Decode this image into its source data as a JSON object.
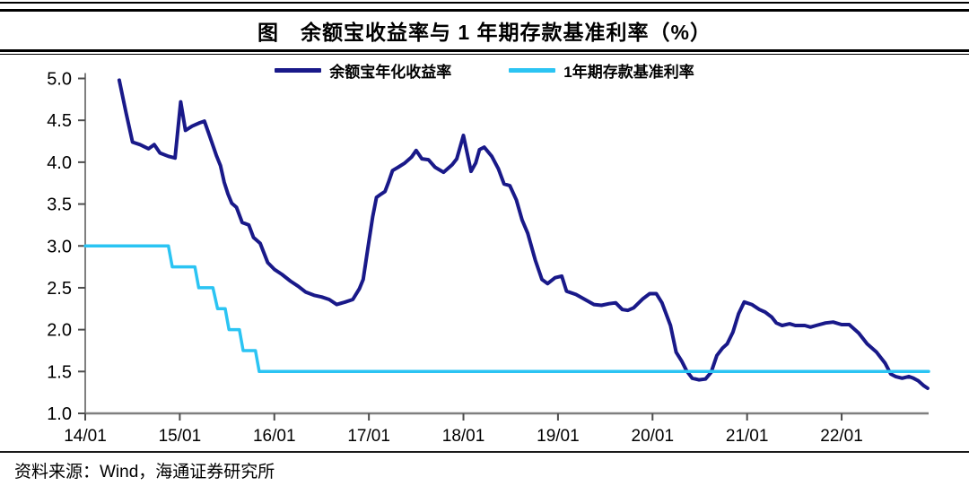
{
  "header": {
    "title": "图　余额宝收益率与 1 年期存款基准利率（%）"
  },
  "legend": {
    "items": [
      {
        "label": "余额宝年化收益率",
        "color": "#191989"
      },
      {
        "label": "1年期存款基准利率",
        "color": "#2bc4f3"
      }
    ]
  },
  "footer": {
    "source": "资料来源：Wind，海通证券研究所"
  },
  "chart_data": {
    "type": "line",
    "title": "余额宝收益率与1年期存款基准利率（%）",
    "xlabel": "",
    "ylabel": "",
    "grid": false,
    "legend_position": "top",
    "ylim": [
      1.0,
      5.0
    ],
    "xlim": [
      2014.0,
      2022.92
    ],
    "y_ticks": [
      5.0,
      4.5,
      4.0,
      3.5,
      3.0,
      2.5,
      2.0,
      1.5,
      1.0
    ],
    "x_ticks": [
      "14/01",
      "15/01",
      "16/01",
      "17/01",
      "18/01",
      "19/01",
      "20/01",
      "21/01",
      "22/01"
    ],
    "axis_color": "#7f7f7f",
    "tick_color": "#4d4d4d",
    "series": [
      {
        "name": "余额宝年化收益率",
        "color": "#191989",
        "width": 4,
        "points": [
          [
            2014.36,
            4.98
          ],
          [
            2014.43,
            4.6
          ],
          [
            2014.5,
            4.24
          ],
          [
            2014.58,
            4.21
          ],
          [
            2014.67,
            4.16
          ],
          [
            2014.73,
            4.21
          ],
          [
            2014.79,
            4.11
          ],
          [
            2014.88,
            4.07
          ],
          [
            2014.95,
            4.05
          ],
          [
            2015.01,
            4.72
          ],
          [
            2015.06,
            4.38
          ],
          [
            2015.13,
            4.43
          ],
          [
            2015.21,
            4.47
          ],
          [
            2015.26,
            4.49
          ],
          [
            2015.32,
            4.3
          ],
          [
            2015.39,
            4.07
          ],
          [
            2015.43,
            3.96
          ],
          [
            2015.47,
            3.76
          ],
          [
            2015.51,
            3.62
          ],
          [
            2015.55,
            3.51
          ],
          [
            2015.6,
            3.46
          ],
          [
            2015.66,
            3.28
          ],
          [
            2015.73,
            3.25
          ],
          [
            2015.78,
            3.1
          ],
          [
            2015.85,
            3.03
          ],
          [
            2015.93,
            2.8
          ],
          [
            2016.0,
            2.72
          ],
          [
            2016.08,
            2.66
          ],
          [
            2016.17,
            2.58
          ],
          [
            2016.25,
            2.52
          ],
          [
            2016.33,
            2.45
          ],
          [
            2016.42,
            2.41
          ],
          [
            2016.5,
            2.39
          ],
          [
            2016.58,
            2.36
          ],
          [
            2016.66,
            2.3
          ],
          [
            2016.75,
            2.33
          ],
          [
            2016.83,
            2.36
          ],
          [
            2016.9,
            2.49
          ],
          [
            2016.94,
            2.6
          ],
          [
            2017.0,
            3.05
          ],
          [
            2017.04,
            3.35
          ],
          [
            2017.08,
            3.58
          ],
          [
            2017.13,
            3.62
          ],
          [
            2017.17,
            3.65
          ],
          [
            2017.21,
            3.77
          ],
          [
            2017.25,
            3.9
          ],
          [
            2017.31,
            3.94
          ],
          [
            2017.38,
            3.99
          ],
          [
            2017.45,
            4.06
          ],
          [
            2017.5,
            4.14
          ],
          [
            2017.56,
            4.04
          ],
          [
            2017.63,
            4.03
          ],
          [
            2017.7,
            3.94
          ],
          [
            2017.79,
            3.88
          ],
          [
            2017.88,
            3.97
          ],
          [
            2017.93,
            4.04
          ],
          [
            2018.0,
            4.32
          ],
          [
            2018.08,
            3.89
          ],
          [
            2018.13,
            3.99
          ],
          [
            2018.17,
            4.15
          ],
          [
            2018.22,
            4.18
          ],
          [
            2018.3,
            4.07
          ],
          [
            2018.37,
            3.92
          ],
          [
            2018.43,
            3.74
          ],
          [
            2018.49,
            3.72
          ],
          [
            2018.56,
            3.55
          ],
          [
            2018.62,
            3.31
          ],
          [
            2018.68,
            3.15
          ],
          [
            2018.76,
            2.83
          ],
          [
            2018.83,
            2.6
          ],
          [
            2018.89,
            2.55
          ],
          [
            2018.97,
            2.62
          ],
          [
            2019.04,
            2.64
          ],
          [
            2019.09,
            2.46
          ],
          [
            2019.19,
            2.42
          ],
          [
            2019.27,
            2.37
          ],
          [
            2019.38,
            2.3
          ],
          [
            2019.46,
            2.29
          ],
          [
            2019.54,
            2.31
          ],
          [
            2019.61,
            2.32
          ],
          [
            2019.68,
            2.24
          ],
          [
            2019.74,
            2.23
          ],
          [
            2019.8,
            2.26
          ],
          [
            2019.9,
            2.37
          ],
          [
            2019.97,
            2.43
          ],
          [
            2020.04,
            2.43
          ],
          [
            2020.1,
            2.32
          ],
          [
            2020.19,
            2.05
          ],
          [
            2020.25,
            1.73
          ],
          [
            2020.31,
            1.62
          ],
          [
            2020.36,
            1.51
          ],
          [
            2020.42,
            1.42
          ],
          [
            2020.49,
            1.4
          ],
          [
            2020.56,
            1.41
          ],
          [
            2020.62,
            1.49
          ],
          [
            2020.68,
            1.69
          ],
          [
            2020.74,
            1.78
          ],
          [
            2020.79,
            1.83
          ],
          [
            2020.85,
            1.97
          ],
          [
            2020.91,
            2.19
          ],
          [
            2020.97,
            2.33
          ],
          [
            2021.05,
            2.3
          ],
          [
            2021.13,
            2.24
          ],
          [
            2021.19,
            2.21
          ],
          [
            2021.26,
            2.15
          ],
          [
            2021.31,
            2.08
          ],
          [
            2021.37,
            2.05
          ],
          [
            2021.45,
            2.07
          ],
          [
            2021.51,
            2.05
          ],
          [
            2021.61,
            2.05
          ],
          [
            2021.67,
            2.03
          ],
          [
            2021.73,
            2.05
          ],
          [
            2021.83,
            2.08
          ],
          [
            2021.91,
            2.09
          ],
          [
            2022.0,
            2.06
          ],
          [
            2022.08,
            2.06
          ],
          [
            2022.18,
            1.96
          ],
          [
            2022.27,
            1.83
          ],
          [
            2022.37,
            1.73
          ],
          [
            2022.46,
            1.6
          ],
          [
            2022.52,
            1.47
          ],
          [
            2022.57,
            1.44
          ],
          [
            2022.64,
            1.42
          ],
          [
            2022.71,
            1.44
          ],
          [
            2022.76,
            1.42
          ],
          [
            2022.81,
            1.39
          ],
          [
            2022.87,
            1.33
          ],
          [
            2022.91,
            1.3
          ]
        ]
      },
      {
        "name": "1年期存款基准利率",
        "color": "#2bc4f3",
        "width": 3.5,
        "points": [
          [
            2014.0,
            3.0
          ],
          [
            2014.88,
            3.0
          ],
          [
            2014.92,
            2.75
          ],
          [
            2015.16,
            2.75
          ],
          [
            2015.2,
            2.5
          ],
          [
            2015.35,
            2.5
          ],
          [
            2015.4,
            2.25
          ],
          [
            2015.48,
            2.25
          ],
          [
            2015.52,
            2.0
          ],
          [
            2015.63,
            2.0
          ],
          [
            2015.67,
            1.75
          ],
          [
            2015.8,
            1.75
          ],
          [
            2015.84,
            1.5
          ],
          [
            2022.92,
            1.5
          ]
        ]
      }
    ]
  }
}
